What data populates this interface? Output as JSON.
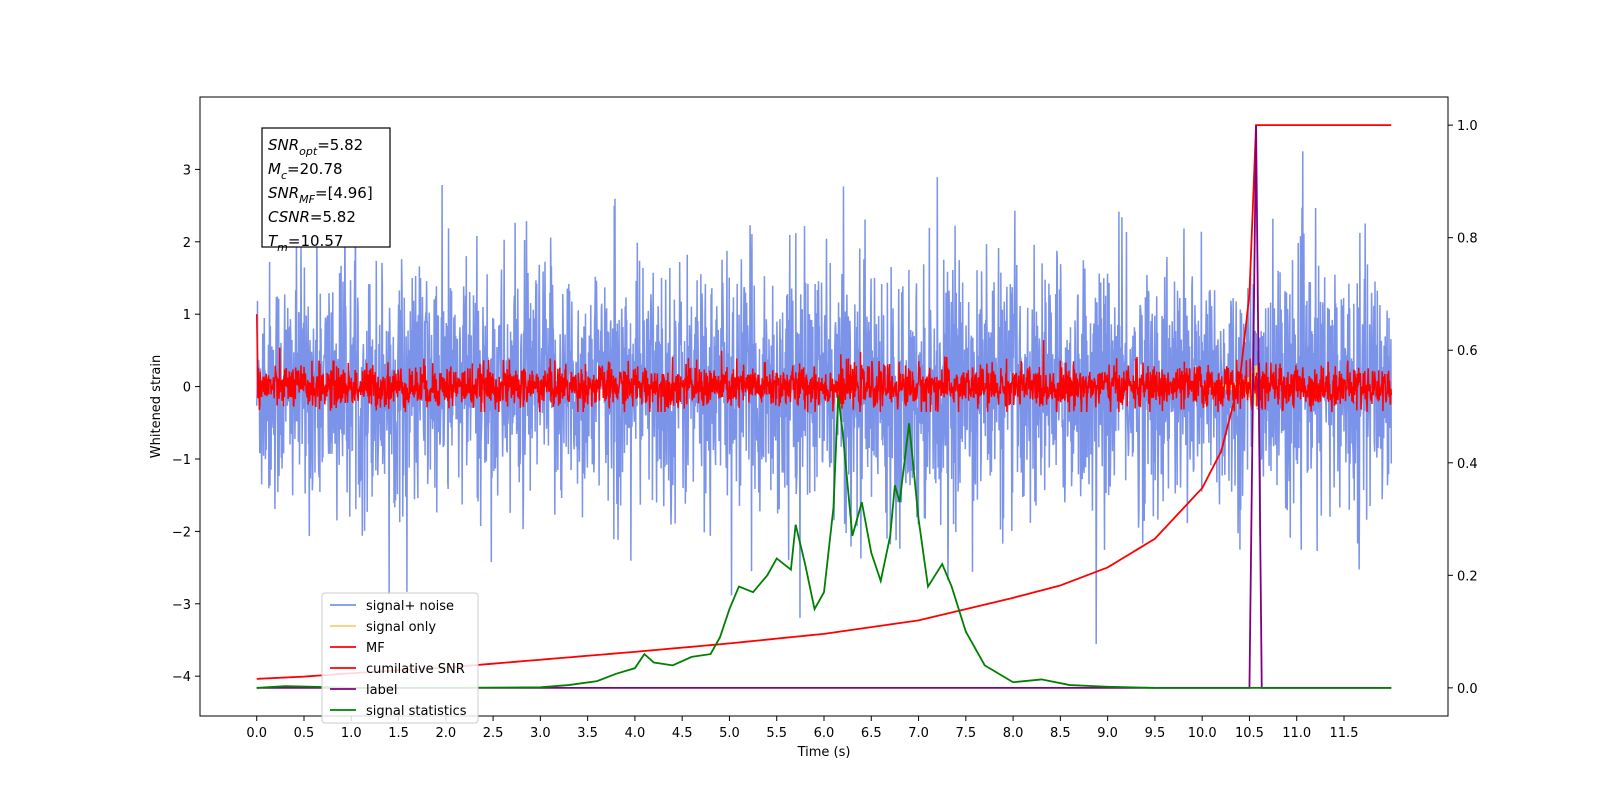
{
  "chart_data": {
    "type": "line",
    "xlabel": "Time (s)",
    "ylabel": "Whitened strain",
    "xlim": [
      -0.6,
      12.6
    ],
    "ylim": [
      -4.55,
      4.0
    ],
    "ylim_right": [
      -0.05,
      1.05
    ],
    "x_ticks": [
      0.0,
      0.5,
      1.0,
      1.5,
      2.0,
      2.5,
      3.0,
      3.5,
      4.0,
      4.5,
      5.0,
      5.5,
      6.0,
      6.5,
      7.0,
      7.5,
      8.0,
      8.5,
      9.0,
      9.5,
      10.0,
      10.5,
      11.0,
      11.5
    ],
    "x_tick_labels": [
      "0.0",
      "0.5",
      "1.0",
      "1.5",
      "2.0",
      "2.5",
      "3.0",
      "3.5",
      "4.0",
      "4.5",
      "5.0",
      "5.5",
      "6.0",
      "6.5",
      "7.0",
      "7.5",
      "8.0",
      "8.5",
      "9.0",
      "9.5",
      "10.0",
      "10.5",
      "11.0",
      "11.5"
    ],
    "y_ticks": [
      3,
      2,
      1,
      0,
      -1,
      -2,
      -3,
      -4
    ],
    "y_tick_labels": [
      "3",
      "2",
      "1",
      "0",
      "−1",
      "−2",
      "−3",
      "−4"
    ],
    "y_right_ticks": [
      1.0,
      0.8,
      0.6,
      0.4,
      0.2,
      0.0
    ],
    "y_right_tick_labels": [
      "1.0",
      "0.8",
      "0.6",
      "0.4",
      "0.2",
      "0.0"
    ],
    "grid": false,
    "legend_position": "lower-left",
    "annotation": {
      "lines": [
        {
          "base": "SNR",
          "sub": "opt",
          "value": "=5.82"
        },
        {
          "base": "M",
          "sub": "c",
          "value": "=20.78"
        },
        {
          "base": "SNR",
          "sub": "MF",
          "value": "=[4.96]"
        },
        {
          "base": "CSNR",
          "sub": "",
          "value": "=5.82"
        },
        {
          "base": "T",
          "sub": "m",
          "value": "=10.57"
        }
      ]
    },
    "series": [
      {
        "name": "signal+ noise",
        "color": "#7b93e8",
        "axis": "left",
        "kind": "noise",
        "x_range": [
          0.0,
          12.0
        ],
        "approx_std": 0.85,
        "approx_range": [
          -4.1,
          3.6
        ]
      },
      {
        "name": "signal only",
        "color": "#f7cf75",
        "axis": "left",
        "kind": "chirp",
        "x_range": [
          10.0,
          10.6
        ],
        "approx_peak": 0.3
      },
      {
        "name": "MF",
        "color": "#ff0000",
        "axis": "left",
        "kind": "noise",
        "x_range": [
          0.0,
          12.0
        ],
        "approx_std": 0.15,
        "approx_range": [
          -0.35,
          1.0
        ]
      },
      {
        "name": "cumilative SNR",
        "color": "#ff0000",
        "axis": "right",
        "x": [
          0.0,
          0.5,
          1.0,
          2.0,
          3.0,
          4.0,
          5.0,
          6.0,
          7.0,
          8.0,
          8.5,
          9.0,
          9.5,
          10.0,
          10.2,
          10.4,
          10.5,
          10.57,
          12.0
        ],
        "y": [
          0.016,
          0.02,
          0.026,
          0.036,
          0.05,
          0.064,
          0.079,
          0.096,
          0.12,
          0.16,
          0.182,
          0.214,
          0.265,
          0.355,
          0.42,
          0.55,
          0.7,
          1.0,
          1.0
        ]
      },
      {
        "name": "label",
        "color": "#800080",
        "axis": "right",
        "x": [
          0.0,
          10.5,
          10.57,
          10.63,
          12.0
        ],
        "y": [
          0.0,
          0.0,
          1.0,
          0.0,
          0.0
        ]
      },
      {
        "name": "signal statistics",
        "color": "#008000",
        "axis": "right",
        "x": [
          0.0,
          0.3,
          0.6,
          1.0,
          2.0,
          3.0,
          3.3,
          3.6,
          3.8,
          4.0,
          4.1,
          4.2,
          4.4,
          4.6,
          4.8,
          4.9,
          5.0,
          5.1,
          5.25,
          5.4,
          5.5,
          5.65,
          5.7,
          5.8,
          5.9,
          6.0,
          6.1,
          6.15,
          6.2,
          6.3,
          6.4,
          6.5,
          6.6,
          6.7,
          6.75,
          6.8,
          6.9,
          7.0,
          7.1,
          7.25,
          7.35,
          7.5,
          7.7,
          8.0,
          8.3,
          8.6,
          9.0,
          9.5,
          10.0,
          11.0,
          12.0
        ],
        "y": [
          0.0,
          0.003,
          0.002,
          0.0,
          0.0,
          0.001,
          0.005,
          0.012,
          0.025,
          0.035,
          0.06,
          0.045,
          0.04,
          0.055,
          0.06,
          0.09,
          0.14,
          0.18,
          0.17,
          0.2,
          0.23,
          0.21,
          0.29,
          0.22,
          0.14,
          0.17,
          0.32,
          0.52,
          0.45,
          0.27,
          0.33,
          0.24,
          0.19,
          0.27,
          0.36,
          0.33,
          0.47,
          0.3,
          0.18,
          0.22,
          0.18,
          0.1,
          0.04,
          0.01,
          0.015,
          0.005,
          0.002,
          0.0,
          0.0,
          0.0,
          0.0
        ]
      }
    ]
  }
}
